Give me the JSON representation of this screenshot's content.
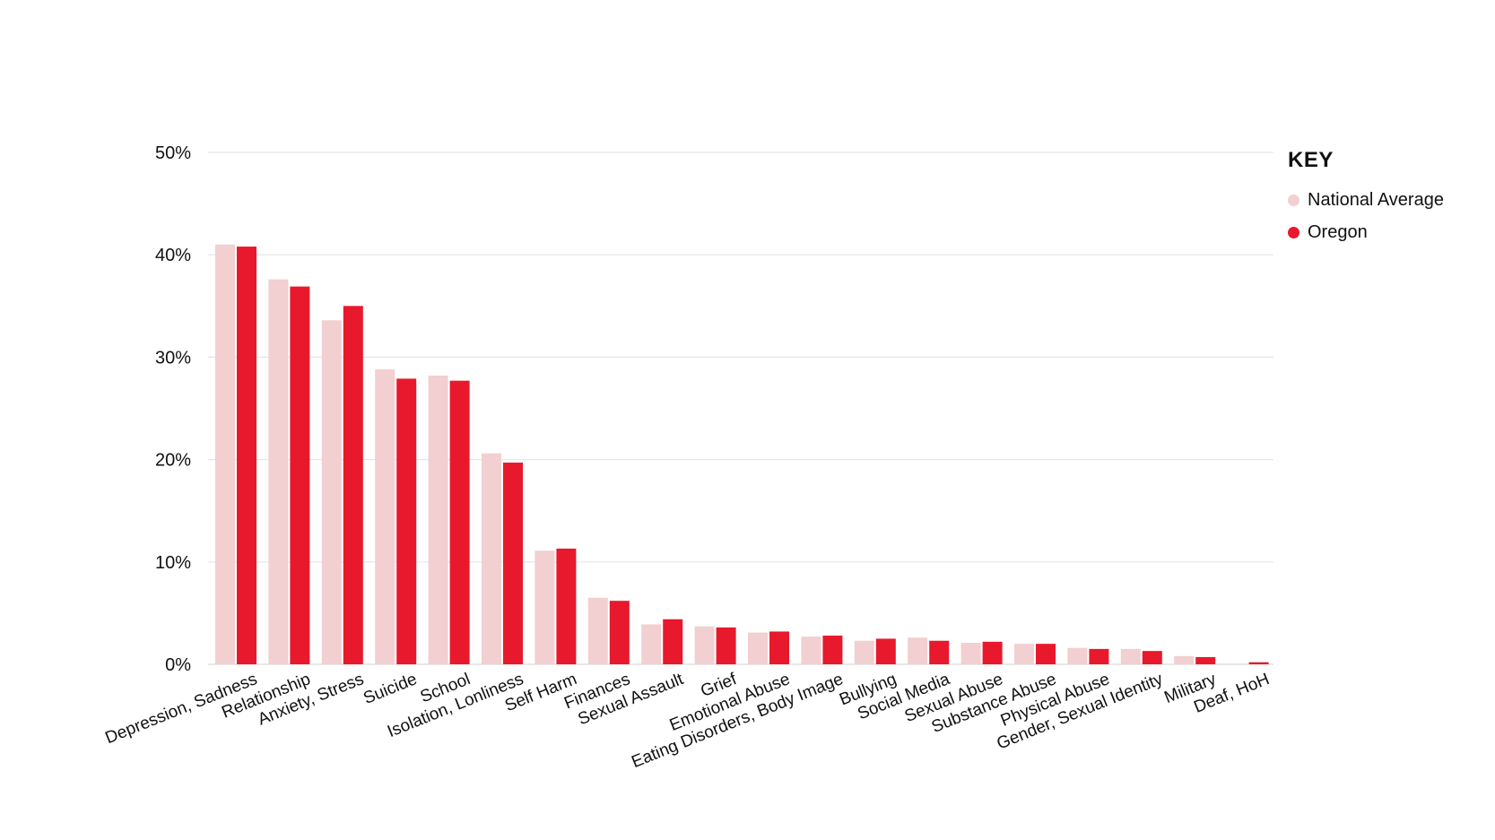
{
  "chart_data": {
    "type": "bar",
    "title": "",
    "xlabel": "",
    "ylabel": "",
    "ylim": [
      0,
      50
    ],
    "yticks": [
      0,
      10,
      20,
      30,
      40,
      50
    ],
    "ytick_labels": [
      "0%",
      "10%",
      "20%",
      "30%",
      "40%",
      "50%"
    ],
    "grid": true,
    "legend": {
      "title": "KEY",
      "placement": "top-right outside"
    },
    "categories": [
      "Depression, Sadness",
      "Relationship",
      "Anxiety, Stress",
      "Suicide",
      "School",
      "Isolation, Lonliness",
      "Self Harm",
      "Finances",
      "Sexual Assault",
      "Grief",
      "Emotional Abuse",
      "Eating Disorders, Body Image",
      "Bullying",
      "Social Media",
      "Sexual Abuse",
      "Substance Abuse",
      "Physical Abuse",
      "Gender, Sexual Identity",
      "Military",
      "Deaf, HoH"
    ],
    "series": [
      {
        "name": "National Average",
        "color": "#f2cfd0",
        "values": [
          41.0,
          37.6,
          33.6,
          28.8,
          28.2,
          20.6,
          11.1,
          6.5,
          3.9,
          3.7,
          3.1,
          2.7,
          2.3,
          2.6,
          2.1,
          2.0,
          1.6,
          1.5,
          0.8,
          0.0
        ]
      },
      {
        "name": "Oregon",
        "color": "#e8192c",
        "values": [
          40.8,
          36.9,
          35.0,
          27.9,
          27.7,
          19.7,
          11.3,
          6.2,
          4.4,
          3.6,
          3.2,
          2.8,
          2.5,
          2.3,
          2.2,
          2.0,
          1.5,
          1.3,
          0.7,
          0.2
        ]
      }
    ]
  }
}
